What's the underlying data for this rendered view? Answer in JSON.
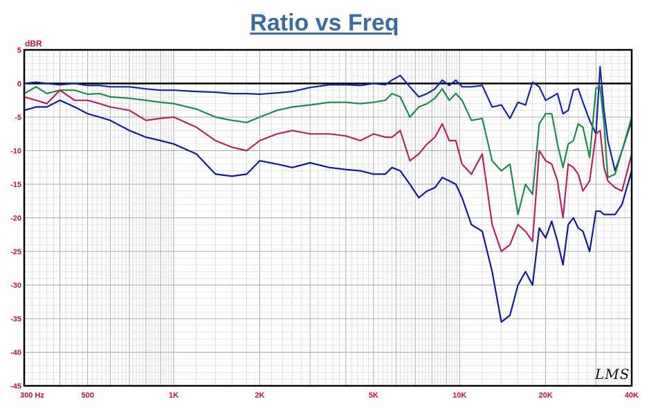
{
  "chart_data": {
    "type": "line",
    "title": "Ratio vs Freq",
    "ylabel": "dBR",
    "xlabel": "",
    "x_scale": "log",
    "xlim": [
      300,
      40000
    ],
    "ylim": [
      -45,
      5
    ],
    "grid": true,
    "y_ticks": [
      "5",
      "0",
      "-5",
      "-10",
      "-15",
      "-20",
      "-25",
      "-30",
      "-35",
      "-40",
      "-45"
    ],
    "y_tick_values": [
      5,
      0,
      -5,
      -10,
      -15,
      -20,
      -25,
      -30,
      -35,
      -40,
      -45
    ],
    "x_ticks": [
      "300 Hz",
      "500",
      "1K",
      "2K",
      "5K",
      "10K",
      "20K",
      "40K"
    ],
    "x_tick_values": [
      300,
      500,
      1000,
      2000,
      5000,
      10000,
      20000,
      40000
    ],
    "watermark": "LMS",
    "colors": {
      "axis_labels": "#c0113c",
      "title": "#3d6b9e",
      "grid": "#b9b9b9",
      "zero_line": "#000000"
    },
    "series": [
      {
        "color": "#1426a6",
        "x": [
          300,
          330,
          360,
          400,
          450,
          500,
          550,
          600,
          700,
          800,
          900,
          1000,
          1200,
          1400,
          1600,
          1800,
          2000,
          2300,
          2600,
          3000,
          3500,
          4000,
          4500,
          5000,
          5500,
          5800,
          6200,
          6700,
          7200,
          7700,
          8200,
          8700,
          9200,
          9700,
          10200,
          11000,
          12000,
          13000,
          14000,
          15000,
          16000,
          17000,
          18000,
          19000,
          20000,
          21000,
          22000,
          23000,
          24000,
          25000,
          26000,
          27000,
          28500,
          30000,
          31000,
          32000,
          33000,
          35000,
          37000,
          40000
        ],
        "values": [
          0,
          0.2,
          0,
          -0.2,
          0,
          -0.3,
          -0.3,
          -0.5,
          -0.5,
          -0.8,
          -1.0,
          -1.0,
          -1.2,
          -1.3,
          -1.5,
          -1.5,
          -1.6,
          -1.4,
          -1.2,
          -0.6,
          -0.2,
          -0.2,
          -0.3,
          0.0,
          -0.2,
          0.5,
          1.2,
          -0.5,
          -2.0,
          -1.5,
          -0.8,
          0.5,
          -0.3,
          0.5,
          -0.5,
          -0.5,
          -0.3,
          -3.5,
          -3.2,
          -5.2,
          -2.8,
          -3.2,
          0.2,
          -0.5,
          -2.5,
          -2.0,
          -1.5,
          -4.5,
          -4.0,
          -1.0,
          -0.8,
          -2.8,
          -5.5,
          -7.5,
          2.5,
          -4.0,
          -8.5,
          -13.0,
          -10.0,
          -5.5
        ]
      },
      {
        "color": "#1f8a4c",
        "x": [
          300,
          330,
          360,
          400,
          450,
          500,
          550,
          600,
          700,
          800,
          900,
          1000,
          1200,
          1400,
          1600,
          1800,
          2000,
          2300,
          2600,
          3000,
          3500,
          4000,
          4500,
          5000,
          5500,
          5800,
          6200,
          6700,
          7200,
          7700,
          8200,
          8700,
          9200,
          9700,
          10200,
          11000,
          12000,
          13000,
          14000,
          15000,
          16000,
          17000,
          18000,
          19000,
          20000,
          21000,
          22000,
          23000,
          24000,
          25000,
          26000,
          27000,
          28500,
          30000,
          31000,
          32000,
          33000,
          35000,
          37000,
          40000
        ],
        "values": [
          -1.5,
          -0.5,
          -1.5,
          -1.0,
          -1.0,
          -1.6,
          -1.5,
          -2.0,
          -2.2,
          -2.5,
          -2.8,
          -3.0,
          -3.8,
          -5.0,
          -5.5,
          -5.8,
          -5.0,
          -4.0,
          -3.5,
          -3.2,
          -2.8,
          -2.8,
          -3.0,
          -2.8,
          -2.5,
          -1.5,
          -2.0,
          -5.0,
          -3.5,
          -3.0,
          -2.2,
          -0.8,
          -2.5,
          -1.5,
          -2.5,
          -5.5,
          -5.2,
          -11.5,
          -13.0,
          -12.0,
          -19.5,
          -15.0,
          -16.5,
          -6.0,
          -4.5,
          -4.5,
          -9.0,
          -12.5,
          -9.0,
          -8.5,
          -6.0,
          -6.5,
          -11.0,
          -0.7,
          -0.5,
          -6.0,
          -14.0,
          -13.5,
          -10.0,
          -5.0
        ]
      },
      {
        "color": "#b5245e",
        "x": [
          300,
          330,
          360,
          400,
          450,
          500,
          550,
          600,
          700,
          800,
          900,
          1000,
          1200,
          1400,
          1600,
          1800,
          2000,
          2300,
          2600,
          3000,
          3500,
          4000,
          4500,
          5000,
          5500,
          5800,
          6200,
          6700,
          7200,
          7700,
          8200,
          8700,
          9200,
          9700,
          10200,
          11000,
          12000,
          13000,
          14000,
          15000,
          16000,
          17000,
          18000,
          19000,
          20000,
          21000,
          22000,
          23000,
          24000,
          25000,
          26000,
          27000,
          28500,
          30000,
          31000,
          32000,
          33000,
          35000,
          37000,
          40000
        ],
        "values": [
          -2.0,
          -2.5,
          -3.0,
          -1.0,
          -2.5,
          -2.5,
          -3.0,
          -3.5,
          -4.0,
          -5.5,
          -5.2,
          -5.0,
          -6.5,
          -8.5,
          -9.5,
          -10.0,
          -8.5,
          -7.5,
          -7.0,
          -7.5,
          -7.5,
          -7.8,
          -8.5,
          -7.5,
          -8.0,
          -8.0,
          -7.0,
          -11.5,
          -10.5,
          -9.0,
          -8.0,
          -6.0,
          -8.5,
          -8.5,
          -12.0,
          -13.5,
          -10.5,
          -21.0,
          -25.0,
          -24.0,
          -21.0,
          -22.0,
          -23.5,
          -10.0,
          -11.5,
          -12.0,
          -14.5,
          -20.0,
          -12.0,
          -12.5,
          -13.5,
          -16.0,
          -14.5,
          -7.5,
          -7.0,
          -12.5,
          -14.5,
          -15.5,
          -16.0,
          -10.5
        ]
      },
      {
        "color": "#0f1a94",
        "x": [
          300,
          330,
          360,
          400,
          450,
          500,
          550,
          600,
          700,
          800,
          900,
          1000,
          1200,
          1400,
          1600,
          1800,
          2000,
          2300,
          2600,
          3000,
          3500,
          4000,
          4500,
          5000,
          5500,
          5800,
          6200,
          6700,
          7200,
          7700,
          8200,
          8700,
          9200,
          9700,
          10200,
          11000,
          12000,
          13000,
          14000,
          15000,
          16000,
          17000,
          18000,
          19000,
          20000,
          21000,
          22000,
          23000,
          24000,
          25000,
          26000,
          27000,
          28500,
          30000,
          31000,
          32000,
          33000,
          35000,
          37000,
          40000
        ],
        "values": [
          -4.0,
          -3.5,
          -3.5,
          -2.5,
          -3.5,
          -4.5,
          -5.0,
          -5.5,
          -7.0,
          -8.0,
          -8.5,
          -9.0,
          -10.5,
          -13.5,
          -13.8,
          -13.5,
          -11.5,
          -12.0,
          -12.5,
          -11.8,
          -12.5,
          -12.8,
          -13.0,
          -13.5,
          -13.5,
          -12.5,
          -13.0,
          -15.0,
          -17.0,
          -16.0,
          -15.5,
          -14.0,
          -14.5,
          -15.0,
          -17.0,
          -21.0,
          -22.0,
          -28.0,
          -35.5,
          -34.5,
          -30.0,
          -28.0,
          -30.0,
          -21.5,
          -23.0,
          -20.5,
          -23.5,
          -27.0,
          -21.0,
          -20.0,
          -21.5,
          -22.0,
          -25.0,
          -19.0,
          -19.0,
          -19.5,
          -19.5,
          -19.5,
          -18.0,
          -13.0
        ]
      }
    ]
  }
}
